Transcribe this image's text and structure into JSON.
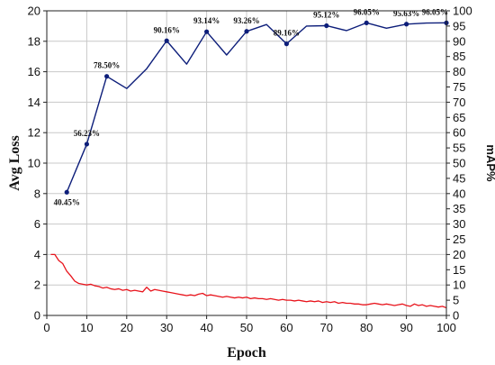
{
  "chart_data": {
    "type": "line",
    "title": "",
    "xlabel": "Epoch",
    "ylabel": "Avg Loss",
    "y2label": "mAP%",
    "xlim": [
      0,
      100
    ],
    "ylim": [
      0,
      20
    ],
    "y2lim": [
      0,
      100
    ],
    "x_ticks": [
      "0",
      "10",
      "20",
      "30",
      "40",
      "50",
      "60",
      "70",
      "80",
      "90",
      "100"
    ],
    "y_ticks": [
      "0",
      "2",
      "4",
      "6",
      "8",
      "10",
      "12",
      "14",
      "16",
      "18",
      "20"
    ],
    "y2_ticks": [
      "0",
      "5",
      "10",
      "15",
      "20",
      "25",
      "30",
      "35",
      "40",
      "45",
      "50",
      "55",
      "60",
      "65",
      "70",
      "75",
      "80",
      "85",
      "90",
      "95",
      "100"
    ],
    "grid": true,
    "colors": {
      "loss": "#e8141c",
      "map": "#0d1e7a",
      "grid": "#c8c8c8"
    },
    "series": [
      {
        "key": "map",
        "axis": "right",
        "x": [
          5,
          10,
          15,
          20,
          25,
          30,
          35,
          40,
          45,
          50,
          55,
          60,
          65,
          70,
          75,
          80,
          85,
          90,
          95,
          100
        ],
        "values": [
          40.45,
          56.23,
          78.5,
          74.5,
          81.0,
          90.16,
          82.5,
          93.14,
          85.5,
          93.26,
          95.5,
          89.16,
          95.0,
          95.12,
          93.5,
          96.05,
          94.3,
          95.63,
          96.0,
          96.05
        ],
        "markers_x": [
          5,
          10,
          15,
          30,
          40,
          50,
          60,
          70,
          80,
          90,
          100
        ],
        "data_labels": [
          {
            "x": 5,
            "y": 40.45,
            "text": "40.45%"
          },
          {
            "x": 10,
            "y": 56.23,
            "text": "56.23%"
          },
          {
            "x": 15,
            "y": 78.5,
            "text": "78.50%"
          },
          {
            "x": 30,
            "y": 90.16,
            "text": "90.16%"
          },
          {
            "x": 40,
            "y": 93.14,
            "text": "93.14%"
          },
          {
            "x": 50,
            "y": 93.26,
            "text": "93.26%"
          },
          {
            "x": 60,
            "y": 89.16,
            "text": "89.16%"
          },
          {
            "x": 70,
            "y": 95.12,
            "text": "95.12%"
          },
          {
            "x": 80,
            "y": 96.05,
            "text": "96.05%"
          },
          {
            "x": 90,
            "y": 95.63,
            "text": "95.63%"
          },
          {
            "x": 100,
            "y": 96.05,
            "text": "96.05%"
          }
        ]
      },
      {
        "key": "loss",
        "axis": "left",
        "x": [
          1,
          2,
          3,
          4,
          5,
          6,
          7,
          8,
          9,
          10,
          11,
          12,
          13,
          14,
          15,
          16,
          17,
          18,
          19,
          20,
          21,
          22,
          23,
          24,
          25,
          26,
          27,
          28,
          29,
          30,
          31,
          32,
          33,
          34,
          35,
          36,
          37,
          38,
          39,
          40,
          41,
          42,
          43,
          44,
          45,
          46,
          47,
          48,
          49,
          50,
          51,
          52,
          53,
          54,
          55,
          56,
          57,
          58,
          59,
          60,
          61,
          62,
          63,
          64,
          65,
          66,
          67,
          68,
          69,
          70,
          71,
          72,
          73,
          74,
          75,
          76,
          77,
          78,
          79,
          80,
          81,
          82,
          83,
          84,
          85,
          86,
          87,
          88,
          89,
          90,
          91,
          92,
          93,
          94,
          95,
          96,
          97,
          98,
          99,
          100
        ],
        "values": [
          4.0,
          4.0,
          3.6,
          3.4,
          2.9,
          2.6,
          2.25,
          2.1,
          2.05,
          2.0,
          2.05,
          1.95,
          1.9,
          1.8,
          1.85,
          1.75,
          1.7,
          1.75,
          1.65,
          1.7,
          1.6,
          1.65,
          1.6,
          1.55,
          1.85,
          1.6,
          1.7,
          1.65,
          1.6,
          1.55,
          1.5,
          1.45,
          1.4,
          1.35,
          1.3,
          1.35,
          1.3,
          1.4,
          1.45,
          1.3,
          1.35,
          1.3,
          1.25,
          1.2,
          1.25,
          1.2,
          1.15,
          1.2,
          1.15,
          1.2,
          1.1,
          1.15,
          1.1,
          1.1,
          1.05,
          1.1,
          1.05,
          1.0,
          1.05,
          1.0,
          1.0,
          0.95,
          1.0,
          0.95,
          0.9,
          0.95,
          0.9,
          0.95,
          0.85,
          0.9,
          0.85,
          0.9,
          0.8,
          0.85,
          0.8,
          0.8,
          0.75,
          0.75,
          0.7,
          0.7,
          0.75,
          0.8,
          0.75,
          0.7,
          0.75,
          0.7,
          0.65,
          0.7,
          0.75,
          0.65,
          0.6,
          0.75,
          0.65,
          0.7,
          0.6,
          0.65,
          0.6,
          0.55,
          0.6,
          0.5
        ]
      }
    ]
  }
}
